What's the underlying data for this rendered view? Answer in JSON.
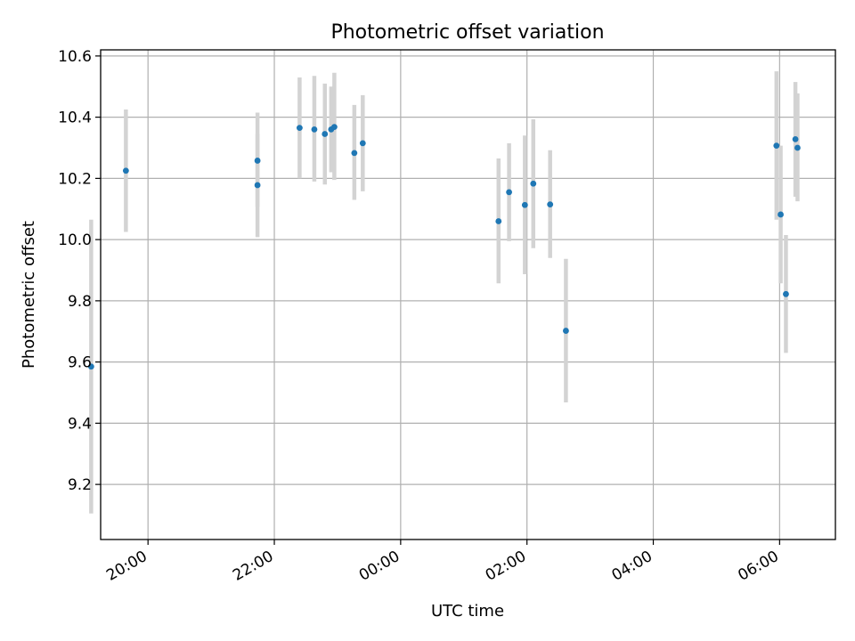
{
  "chart_data": {
    "type": "scatter",
    "title": "Photometric offset variation",
    "xlabel": "UTC time",
    "ylabel": "Photometric offset",
    "grid": true,
    "xlim": [
      "19:15",
      "30:53"
    ],
    "ylim": [
      9.02,
      10.62
    ],
    "x_ticks": [
      {
        "value": "20:00",
        "label": "20:00"
      },
      {
        "value": "22:00",
        "label": "22:00"
      },
      {
        "value": "24:00",
        "label": "00:00"
      },
      {
        "value": "26:00",
        "label": "02:00"
      },
      {
        "value": "28:00",
        "label": "04:00"
      },
      {
        "value": "30:00",
        "label": "06:00"
      }
    ],
    "y_ticks": [
      {
        "value": 9.2,
        "label": "9.2"
      },
      {
        "value": 9.4,
        "label": "9.4"
      },
      {
        "value": 9.6,
        "label": "9.6"
      },
      {
        "value": 9.8,
        "label": "9.8"
      },
      {
        "value": 10.0,
        "label": "10.0"
      },
      {
        "value": 10.2,
        "label": "10.2"
      },
      {
        "value": 10.4,
        "label": "10.4"
      },
      {
        "value": 10.6,
        "label": "10.6"
      }
    ],
    "series": [
      {
        "marker_color": "#1f77b4",
        "errorbar_color": "#d3d3d3",
        "points": [
          {
            "x": "19:06",
            "y": 9.585,
            "ylo": 9.105,
            "yhi": 10.065
          },
          {
            "x": "19:39",
            "y": 10.225,
            "ylo": 10.025,
            "yhi": 10.425
          },
          {
            "x": "21:44",
            "y": 10.178,
            "ylo": 10.008,
            "yhi": 10.345
          },
          {
            "x": "21:44",
            "y": 10.258,
            "ylo": 10.108,
            "yhi": 10.415
          },
          {
            "x": "22:24",
            "y": 10.365,
            "ylo": 10.2,
            "yhi": 10.53
          },
          {
            "x": "22:38",
            "y": 10.36,
            "ylo": 10.19,
            "yhi": 10.535
          },
          {
            "x": "22:48",
            "y": 10.345,
            "ylo": 10.18,
            "yhi": 10.51
          },
          {
            "x": "22:54",
            "y": 10.36,
            "ylo": 10.22,
            "yhi": 10.5
          },
          {
            "x": "22:57",
            "y": 10.368,
            "ylo": 10.195,
            "yhi": 10.545
          },
          {
            "x": "23:16",
            "y": 10.283,
            "ylo": 10.13,
            "yhi": 10.44
          },
          {
            "x": "23:24",
            "y": 10.315,
            "ylo": 10.158,
            "yhi": 10.472
          },
          {
            "x": "25:33",
            "y": 10.06,
            "ylo": 9.857,
            "yhi": 10.265
          },
          {
            "x": "25:43",
            "y": 10.155,
            "ylo": 9.995,
            "yhi": 10.315
          },
          {
            "x": "25:58",
            "y": 10.113,
            "ylo": 9.887,
            "yhi": 10.34
          },
          {
            "x": "26:06",
            "y": 10.183,
            "ylo": 9.972,
            "yhi": 10.393
          },
          {
            "x": "26:22",
            "y": 10.115,
            "ylo": 9.94,
            "yhi": 10.292
          },
          {
            "x": "26:37",
            "y": 9.702,
            "ylo": 9.468,
            "yhi": 9.937
          },
          {
            "x": "29:57",
            "y": 10.307,
            "ylo": 10.065,
            "yhi": 10.55
          },
          {
            "x": "30:06",
            "y": 9.822,
            "ylo": 9.63,
            "yhi": 10.015
          },
          {
            "x": "30:01",
            "y": 10.082,
            "ylo": 9.857,
            "yhi": 10.307
          },
          {
            "x": "30:15",
            "y": 10.328,
            "ylo": 10.14,
            "yhi": 10.515
          },
          {
            "x": "30:17",
            "y": 10.3,
            "ylo": 10.125,
            "yhi": 10.478
          }
        ]
      }
    ]
  }
}
